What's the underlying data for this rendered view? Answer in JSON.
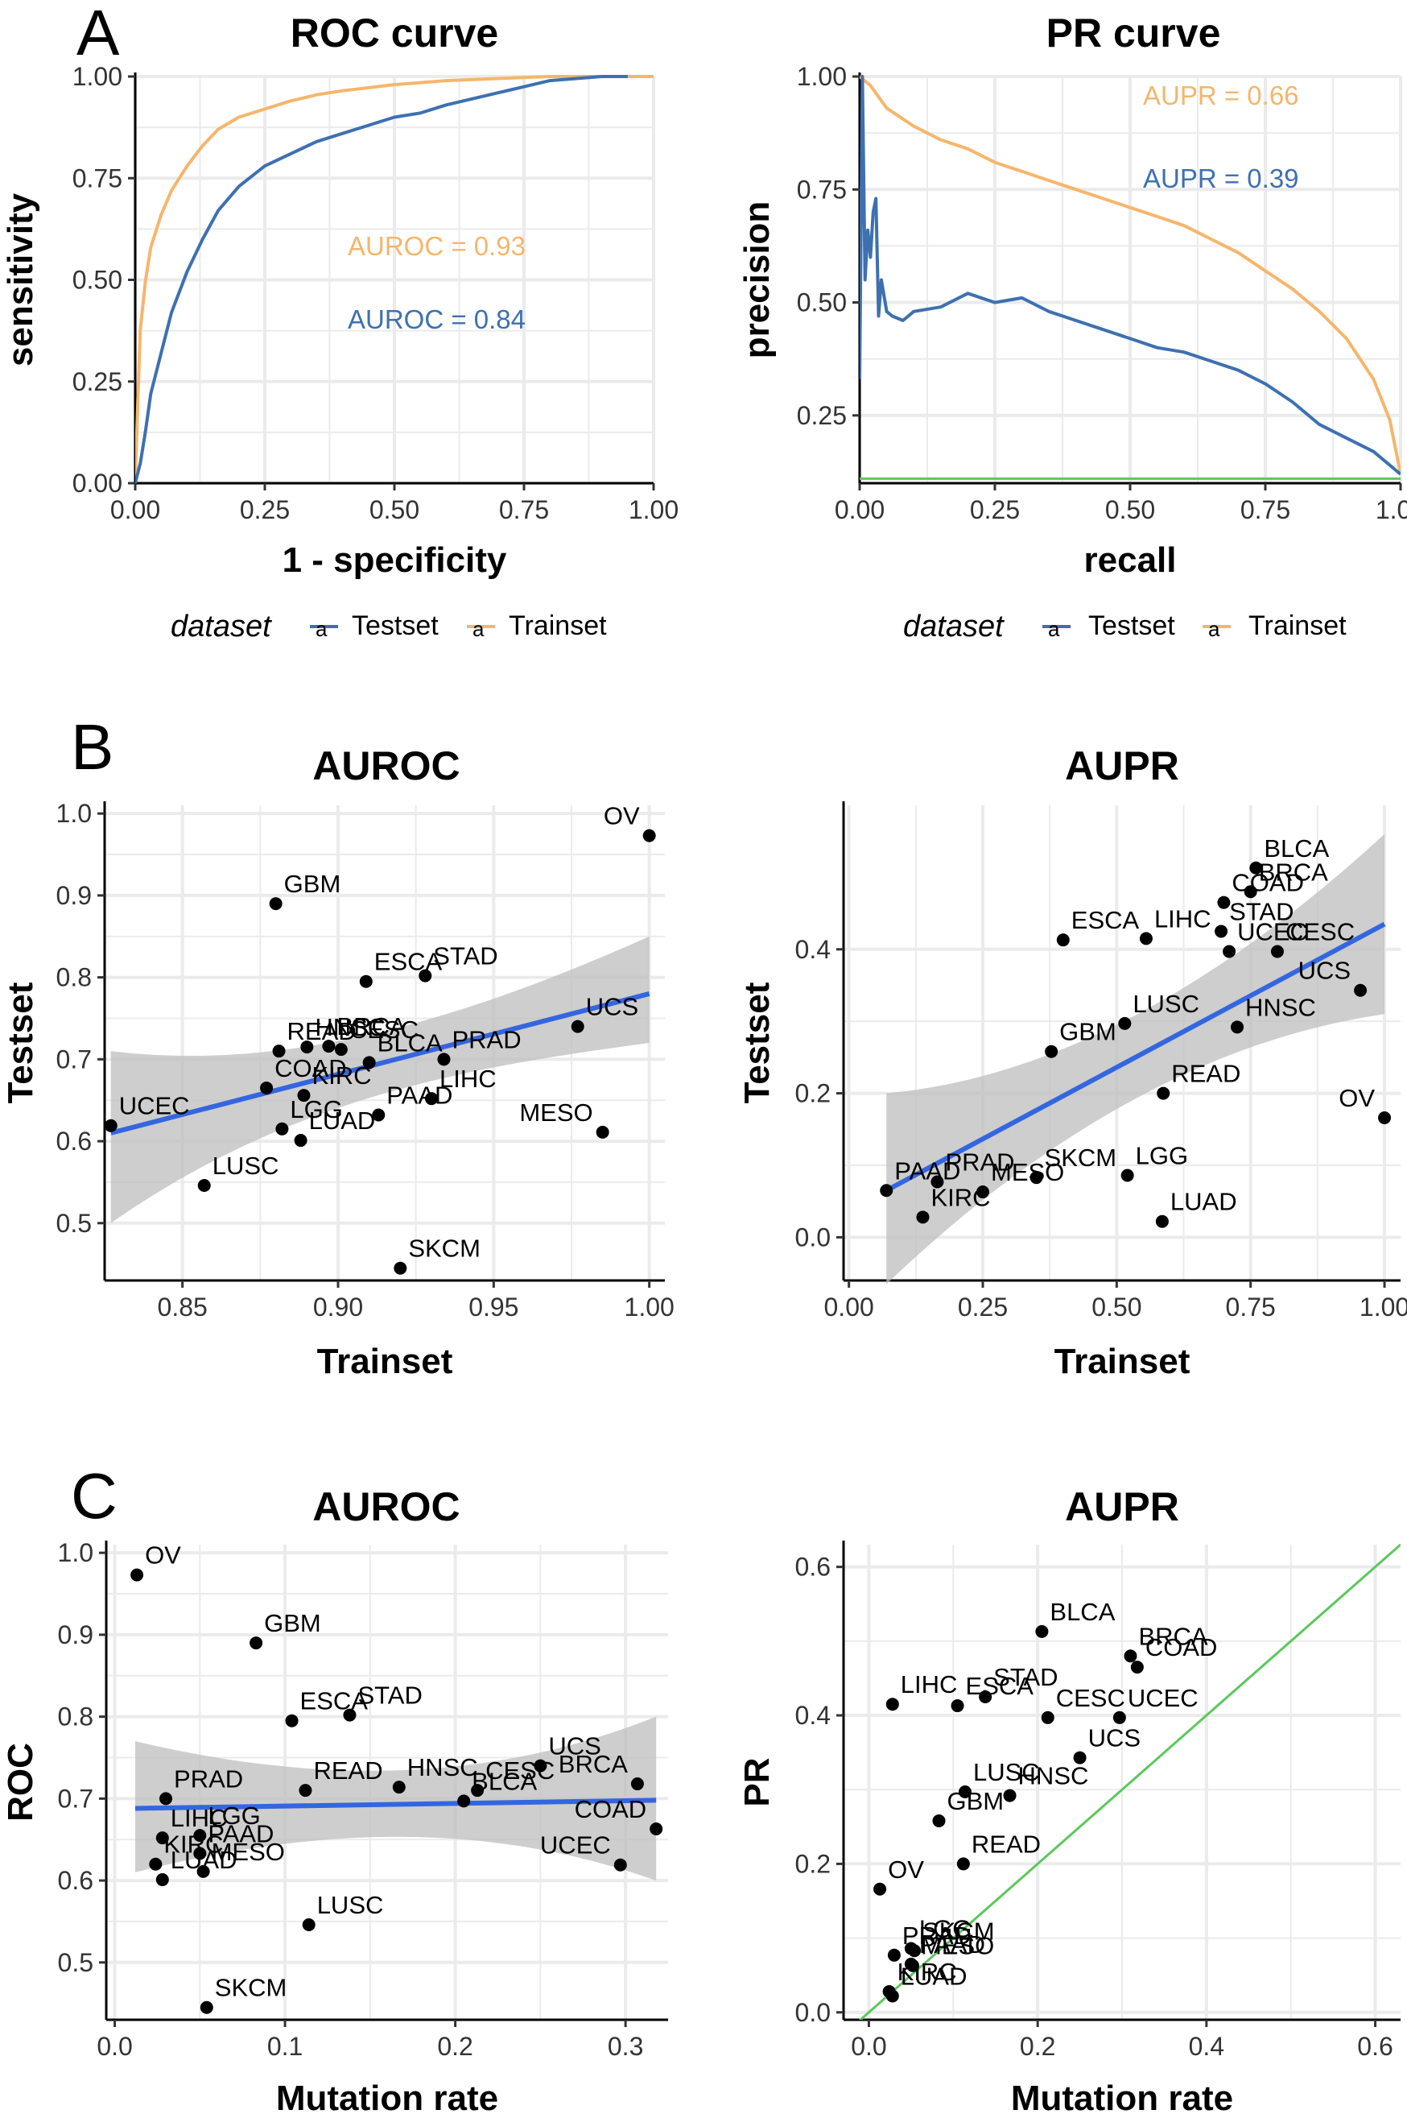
{
  "colors": {
    "testset": "#3E70B0",
    "trainset": "#F5B66C",
    "fit": "#3366E0",
    "ribbon": "#BDBDBD",
    "baseline": "#5CC75C",
    "grid": "#EBEBEB"
  },
  "panel_letters": [
    "A",
    "B",
    "C"
  ],
  "legend": {
    "title": "dataset",
    "items": [
      "Testset",
      "Trainset"
    ]
  },
  "chart_data": [
    {
      "id": "roc",
      "type": "line",
      "title": "ROC curve",
      "xlabel": "1 - specificity",
      "ylabel": "sensitivity",
      "xlim": [
        0,
        1
      ],
      "ylim": [
        0,
        1
      ],
      "xticks": [
        "0.00",
        "0.25",
        "0.50",
        "0.75",
        "1.00"
      ],
      "yticks": [
        "0.00",
        "0.25",
        "0.50",
        "0.75",
        "1.00"
      ],
      "grid": true,
      "legend_position": "bottom",
      "annotations": [
        {
          "text": "AUROC = 0.93",
          "series": "Trainset"
        },
        {
          "text": "AUROC = 0.84",
          "series": "Testset"
        }
      ],
      "series": [
        {
          "name": "Trainset",
          "x": [
            0,
            0.005,
            0.01,
            0.02,
            0.03,
            0.05,
            0.07,
            0.1,
            0.13,
            0.16,
            0.2,
            0.25,
            0.3,
            0.35,
            0.4,
            0.5,
            0.6,
            0.7,
            0.8,
            0.9,
            1.0
          ],
          "y": [
            0,
            0.2,
            0.38,
            0.5,
            0.58,
            0.66,
            0.72,
            0.78,
            0.83,
            0.87,
            0.9,
            0.92,
            0.94,
            0.955,
            0.965,
            0.98,
            0.99,
            0.995,
            1,
            1,
            1
          ]
        },
        {
          "name": "Testset",
          "x": [
            0,
            0.01,
            0.02,
            0.03,
            0.05,
            0.07,
            0.1,
            0.13,
            0.16,
            0.2,
            0.25,
            0.3,
            0.35,
            0.4,
            0.45,
            0.5,
            0.55,
            0.6,
            0.7,
            0.8,
            0.9,
            0.95
          ],
          "y": [
            0,
            0.05,
            0.13,
            0.22,
            0.32,
            0.42,
            0.52,
            0.6,
            0.67,
            0.73,
            0.78,
            0.81,
            0.84,
            0.86,
            0.88,
            0.9,
            0.91,
            0.93,
            0.96,
            0.99,
            1,
            1
          ]
        }
      ]
    },
    {
      "id": "pr",
      "type": "line",
      "title": "PR curve",
      "xlabel": "recall",
      "ylabel": "precision",
      "xlim": [
        0,
        1
      ],
      "ylim": [
        0.1,
        1
      ],
      "xticks": [
        "0.00",
        "0.25",
        "0.50",
        "0.75",
        "1.00"
      ],
      "yticks": [
        "0.25",
        "0.50",
        "0.75",
        "1.00"
      ],
      "grid": true,
      "legend_position": "bottom",
      "baseline": 0.11,
      "annotations": [
        {
          "text": "AUPR = 0.66",
          "series": "Trainset"
        },
        {
          "text": "AUPR = 0.39",
          "series": "Testset"
        }
      ],
      "series": [
        {
          "name": "Trainset",
          "x": [
            0,
            0.02,
            0.05,
            0.1,
            0.15,
            0.2,
            0.25,
            0.3,
            0.35,
            0.4,
            0.45,
            0.5,
            0.55,
            0.6,
            0.65,
            0.7,
            0.75,
            0.8,
            0.85,
            0.9,
            0.95,
            0.98,
            1.0
          ],
          "y": [
            1,
            0.98,
            0.93,
            0.89,
            0.86,
            0.84,
            0.81,
            0.79,
            0.77,
            0.75,
            0.73,
            0.71,
            0.69,
            0.67,
            0.64,
            0.61,
            0.57,
            0.53,
            0.48,
            0.42,
            0.33,
            0.24,
            0.12
          ]
        },
        {
          "name": "Testset",
          "x": [
            0,
            0.005,
            0.01,
            0.015,
            0.02,
            0.025,
            0.03,
            0.035,
            0.04,
            0.05,
            0.06,
            0.08,
            0.1,
            0.15,
            0.2,
            0.25,
            0.3,
            0.35,
            0.4,
            0.45,
            0.5,
            0.55,
            0.6,
            0.65,
            0.7,
            0.75,
            0.8,
            0.85,
            0.9,
            0.95,
            1.0
          ],
          "y": [
            0.33,
            1,
            0.55,
            0.66,
            0.6,
            0.7,
            0.73,
            0.47,
            0.55,
            0.48,
            0.47,
            0.46,
            0.48,
            0.49,
            0.52,
            0.5,
            0.51,
            0.48,
            0.46,
            0.44,
            0.42,
            0.4,
            0.39,
            0.37,
            0.35,
            0.32,
            0.28,
            0.23,
            0.2,
            0.17,
            0.12
          ]
        }
      ]
    },
    {
      "id": "b_auroc",
      "type": "scatter",
      "title": "AUROC",
      "xlabel": "Trainset",
      "ylabel": "Testset",
      "xlim": [
        0.825,
        1.005
      ],
      "ylim": [
        0.43,
        1.01
      ],
      "xticks": [
        0.85,
        0.9,
        0.95,
        1.0
      ],
      "xtick_labels": [
        "0.85",
        "0.90",
        "0.95",
        "1.00"
      ],
      "yticks": [
        0.5,
        0.6,
        0.7,
        0.8,
        0.9,
        1.0
      ],
      "ytick_labels": [
        "0.5",
        "0.6",
        "0.7",
        "0.8",
        "0.9",
        "1.0"
      ],
      "grid": true,
      "fit": {
        "x": [
          0.827,
          1.0
        ],
        "y": [
          0.61,
          0.78
        ],
        "ribbon_low": [
          0.5,
          0.72
        ],
        "ribbon_high": [
          0.71,
          0.85
        ]
      },
      "points": [
        {
          "label": "OV",
          "x": 1.0,
          "y": 0.973
        },
        {
          "label": "GBM",
          "x": 0.88,
          "y": 0.89
        },
        {
          "label": "STAD",
          "x": 0.928,
          "y": 0.802
        },
        {
          "label": "ESCA",
          "x": 0.909,
          "y": 0.795
        },
        {
          "label": "UCS",
          "x": 0.977,
          "y": 0.74
        },
        {
          "label": "HNSC",
          "x": 0.89,
          "y": 0.715
        },
        {
          "label": "BRCA",
          "x": 0.897,
          "y": 0.716
        },
        {
          "label": "CESC",
          "x": 0.901,
          "y": 0.712
        },
        {
          "label": "PRAD",
          "x": 0.934,
          "y": 0.7
        },
        {
          "label": "READ",
          "x": 0.881,
          "y": 0.71
        },
        {
          "label": "BLCA",
          "x": 0.91,
          "y": 0.696
        },
        {
          "label": "COAD",
          "x": 0.877,
          "y": 0.665
        },
        {
          "label": "KIRC",
          "x": 0.889,
          "y": 0.656
        },
        {
          "label": "LIHC",
          "x": 0.93,
          "y": 0.652
        },
        {
          "label": "LGG",
          "x": 0.882,
          "y": 0.615
        },
        {
          "label": "PAAD",
          "x": 0.913,
          "y": 0.632
        },
        {
          "label": "LUAD",
          "x": 0.888,
          "y": 0.601
        },
        {
          "label": "MESO",
          "x": 0.985,
          "y": 0.611
        },
        {
          "label": "UCEC",
          "x": 0.827,
          "y": 0.619
        },
        {
          "label": "LUSC",
          "x": 0.857,
          "y": 0.546
        },
        {
          "label": "SKCM",
          "x": 0.92,
          "y": 0.445
        }
      ]
    },
    {
      "id": "b_aupr",
      "type": "scatter",
      "title": "AUPR",
      "xlabel": "Trainset",
      "ylabel": "Testset",
      "xlim": [
        -0.01,
        1.03
      ],
      "ylim": [
        -0.06,
        0.6
      ],
      "xticks": [
        0,
        0.25,
        0.5,
        0.75,
        1.0
      ],
      "xtick_labels": [
        "0.00",
        "0.25",
        "0.50",
        "0.75",
        "1.00"
      ],
      "yticks": [
        0,
        0.2,
        0.4
      ],
      "ytick_labels": [
        "0.0",
        "0.2",
        "0.4"
      ],
      "grid": true,
      "fit": {
        "x": [
          0.07,
          1.0
        ],
        "y": [
          0.065,
          0.435
        ],
        "ribbon_low": [
          -0.065,
          0.31
        ],
        "ribbon_high": [
          0.2,
          0.56
        ]
      },
      "points": [
        {
          "label": "BLCA",
          "x": 0.76,
          "y": 0.513
        },
        {
          "label": "BRCA",
          "x": 0.75,
          "y": 0.48
        },
        {
          "label": "COAD",
          "x": 0.7,
          "y": 0.465
        },
        {
          "label": "STAD",
          "x": 0.695,
          "y": 0.425
        },
        {
          "label": "ESCA",
          "x": 0.4,
          "y": 0.413
        },
        {
          "label": "LIHC",
          "x": 0.555,
          "y": 0.415
        },
        {
          "label": "UCEC",
          "x": 0.71,
          "y": 0.397
        },
        {
          "label": "CESC",
          "x": 0.8,
          "y": 0.397
        },
        {
          "label": "UCS",
          "x": 0.955,
          "y": 0.343
        },
        {
          "label": "LUSC",
          "x": 0.515,
          "y": 0.297
        },
        {
          "label": "HNSC",
          "x": 0.725,
          "y": 0.292
        },
        {
          "label": "GBM",
          "x": 0.378,
          "y": 0.258
        },
        {
          "label": "READ",
          "x": 0.587,
          "y": 0.2
        },
        {
          "label": "OV",
          "x": 1.0,
          "y": 0.166
        },
        {
          "label": "PRAD",
          "x": 0.165,
          "y": 0.077
        },
        {
          "label": "PAAD",
          "x": 0.07,
          "y": 0.065
        },
        {
          "label": "MESO",
          "x": 0.25,
          "y": 0.063
        },
        {
          "label": "SKCM",
          "x": 0.35,
          "y": 0.083
        },
        {
          "label": "LGG",
          "x": 0.52,
          "y": 0.086
        },
        {
          "label": "KIRC",
          "x": 0.138,
          "y": 0.028
        },
        {
          "label": "LUAD",
          "x": 0.585,
          "y": 0.022
        }
      ]
    },
    {
      "id": "c_auroc",
      "type": "scatter",
      "title": "AUROC",
      "xlabel": "Mutation rate",
      "ylabel": "ROC",
      "xlim": [
        -0.005,
        0.325
      ],
      "ylim": [
        0.43,
        1.01
      ],
      "xticks": [
        0,
        0.1,
        0.2,
        0.3
      ],
      "xtick_labels": [
        "0.0",
        "0.1",
        "0.2",
        "0.3"
      ],
      "yticks": [
        0.5,
        0.6,
        0.7,
        0.8,
        0.9,
        1.0
      ],
      "ytick_labels": [
        "0.5",
        "0.6",
        "0.7",
        "0.8",
        "0.9",
        "1.0"
      ],
      "grid": true,
      "fit": {
        "x": [
          0.012,
          0.318
        ],
        "y": [
          0.688,
          0.698
        ],
        "ribbon_low": [
          0.61,
          0.6
        ],
        "ribbon_high": [
          0.77,
          0.8
        ]
      },
      "points": [
        {
          "label": "OV",
          "x": 0.013,
          "y": 0.973
        },
        {
          "label": "GBM",
          "x": 0.083,
          "y": 0.89
        },
        {
          "label": "STAD",
          "x": 0.138,
          "y": 0.802
        },
        {
          "label": "ESCA",
          "x": 0.104,
          "y": 0.795
        },
        {
          "label": "UCS",
          "x": 0.25,
          "y": 0.74
        },
        {
          "label": "PRAD",
          "x": 0.03,
          "y": 0.7
        },
        {
          "label": "READ",
          "x": 0.112,
          "y": 0.71
        },
        {
          "label": "HNSC",
          "x": 0.167,
          "y": 0.714
        },
        {
          "label": "CESC",
          "x": 0.213,
          "y": 0.71
        },
        {
          "label": "BRCA",
          "x": 0.307,
          "y": 0.718
        },
        {
          "label": "BLCA",
          "x": 0.205,
          "y": 0.697
        },
        {
          "label": "COAD",
          "x": 0.318,
          "y": 0.663
        },
        {
          "label": "UCEC",
          "x": 0.297,
          "y": 0.619
        },
        {
          "label": "LIHC",
          "x": 0.028,
          "y": 0.652
        },
        {
          "label": "LGG",
          "x": 0.05,
          "y": 0.655
        },
        {
          "label": "PAAD",
          "x": 0.05,
          "y": 0.633
        },
        {
          "label": "KIRC",
          "x": 0.024,
          "y": 0.62
        },
        {
          "label": "LUAD",
          "x": 0.028,
          "y": 0.601
        },
        {
          "label": "MESO",
          "x": 0.052,
          "y": 0.611
        },
        {
          "label": "LUSC",
          "x": 0.114,
          "y": 0.546
        },
        {
          "label": "SKCM",
          "x": 0.054,
          "y": 0.445
        }
      ]
    },
    {
      "id": "c_aupr",
      "type": "scatter",
      "title": "AUPR",
      "xlabel": "Mutation rate",
      "ylabel": "PR",
      "xlim": [
        -0.03,
        0.63
      ],
      "ylim": [
        -0.01,
        0.63
      ],
      "xticks": [
        0,
        0.2,
        0.4,
        0.6
      ],
      "xtick_labels": [
        "0.0",
        "0.2",
        "0.4",
        "0.6"
      ],
      "yticks": [
        0,
        0.2,
        0.4,
        0.6
      ],
      "ytick_labels": [
        "0.0",
        "0.2",
        "0.4",
        "0.6"
      ],
      "grid": true,
      "identity_line": true,
      "points": [
        {
          "label": "BLCA",
          "x": 0.205,
          "y": 0.513
        },
        {
          "label": "BRCA",
          "x": 0.31,
          "y": 0.48
        },
        {
          "label": "COAD",
          "x": 0.318,
          "y": 0.465
        },
        {
          "label": "LIHC",
          "x": 0.028,
          "y": 0.415
        },
        {
          "label": "ESCA",
          "x": 0.105,
          "y": 0.413
        },
        {
          "label": "STAD",
          "x": 0.138,
          "y": 0.425
        },
        {
          "label": "CESC",
          "x": 0.212,
          "y": 0.397
        },
        {
          "label": "UCEC",
          "x": 0.297,
          "y": 0.397
        },
        {
          "label": "UCS",
          "x": 0.25,
          "y": 0.343
        },
        {
          "label": "LUSC",
          "x": 0.114,
          "y": 0.297
        },
        {
          "label": "HNSC",
          "x": 0.167,
          "y": 0.292
        },
        {
          "label": "GBM",
          "x": 0.083,
          "y": 0.258
        },
        {
          "label": "READ",
          "x": 0.112,
          "y": 0.2
        },
        {
          "label": "OV",
          "x": 0.013,
          "y": 0.166
        },
        {
          "label": "LGG",
          "x": 0.05,
          "y": 0.086
        },
        {
          "label": "PRAD",
          "x": 0.03,
          "y": 0.077
        },
        {
          "label": "SKCM",
          "x": 0.054,
          "y": 0.083
        },
        {
          "label": "PAAD",
          "x": 0.05,
          "y": 0.065
        },
        {
          "label": "MESO",
          "x": 0.052,
          "y": 0.063
        },
        {
          "label": "KIRC",
          "x": 0.024,
          "y": 0.028
        },
        {
          "label": "LUAD",
          "x": 0.028,
          "y": 0.022
        }
      ]
    }
  ]
}
